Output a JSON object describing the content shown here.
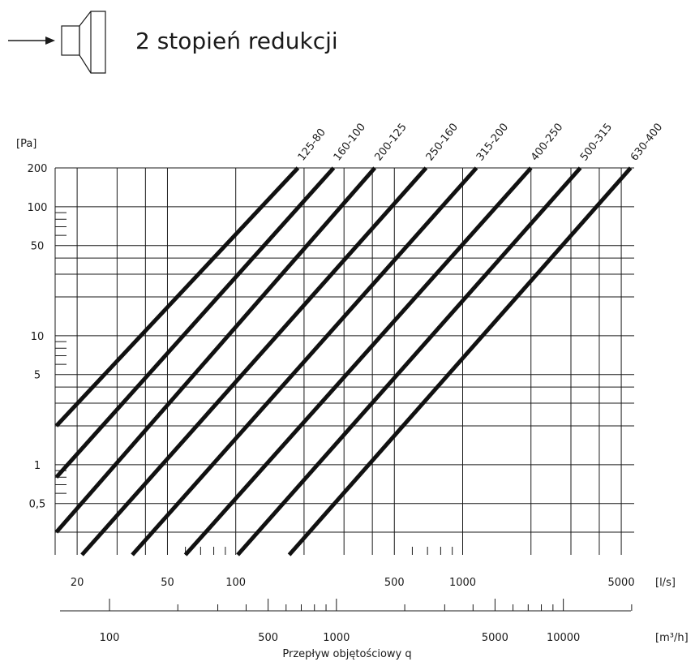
{
  "header": {
    "title": "2 stopień redukcji",
    "icon": "reducer-icon"
  },
  "chart_data": {
    "type": "line",
    "title": "2 stopień redukcji",
    "xlabel": "Przepływ objętościowy q",
    "ylabel": "",
    "x_scale": "log",
    "y_scale": "log",
    "xlim_ls": [
      16,
      5700
    ],
    "ylim_pa": [
      0.2,
      200
    ],
    "x_unit_primary": "[l/s]",
    "x_unit_secondary": "[m³/h]",
    "y_unit": "[Pa]",
    "x_ticks_primary": [
      {
        "value": 20,
        "label": "20"
      },
      {
        "value": 50,
        "label": "50"
      },
      {
        "value": 100,
        "label": "100"
      },
      {
        "value": 500,
        "label": "500"
      },
      {
        "value": 1000,
        "label": "1000"
      },
      {
        "value": 5000,
        "label": "5000"
      }
    ],
    "x_ticks_secondary": [
      {
        "value": 100,
        "label": "100"
      },
      {
        "value": 500,
        "label": "500"
      },
      {
        "value": 1000,
        "label": "1000"
      },
      {
        "value": 5000,
        "label": "5000"
      },
      {
        "value": 10000,
        "label": "10000"
      }
    ],
    "y_ticks": [
      {
        "value": 0.5,
        "label": "0,5"
      },
      {
        "value": 1,
        "label": "1"
      },
      {
        "value": 5,
        "label": "5"
      },
      {
        "value": 10,
        "label": "10"
      },
      {
        "value": 50,
        "label": "50"
      },
      {
        "value": 100,
        "label": "100"
      },
      {
        "value": 200,
        "label": "200"
      }
    ],
    "grid": true,
    "series": [
      {
        "name": "125-80",
        "points": [
          [
            16.2,
            2.0
          ],
          [
            188,
            200
          ]
        ]
      },
      {
        "name": "160-100",
        "points": [
          [
            16.2,
            0.8
          ],
          [
            270,
            200
          ]
        ]
      },
      {
        "name": "200-125",
        "points": [
          [
            16.2,
            0.3
          ],
          [
            410,
            200
          ]
        ]
      },
      {
        "name": "250-160",
        "points": [
          [
            21,
            0.2
          ],
          [
            690,
            200
          ]
        ]
      },
      {
        "name": "315-200",
        "points": [
          [
            35,
            0.2
          ],
          [
            1150,
            200
          ]
        ]
      },
      {
        "name": "400-250",
        "points": [
          [
            60,
            0.2
          ],
          [
            2000,
            200
          ]
        ]
      },
      {
        "name": "500-315",
        "points": [
          [
            102,
            0.2
          ],
          [
            3300,
            200
          ]
        ]
      },
      {
        "name": "630-400",
        "points": [
          [
            172,
            0.2
          ],
          [
            5500,
            200
          ]
        ]
      }
    ]
  }
}
